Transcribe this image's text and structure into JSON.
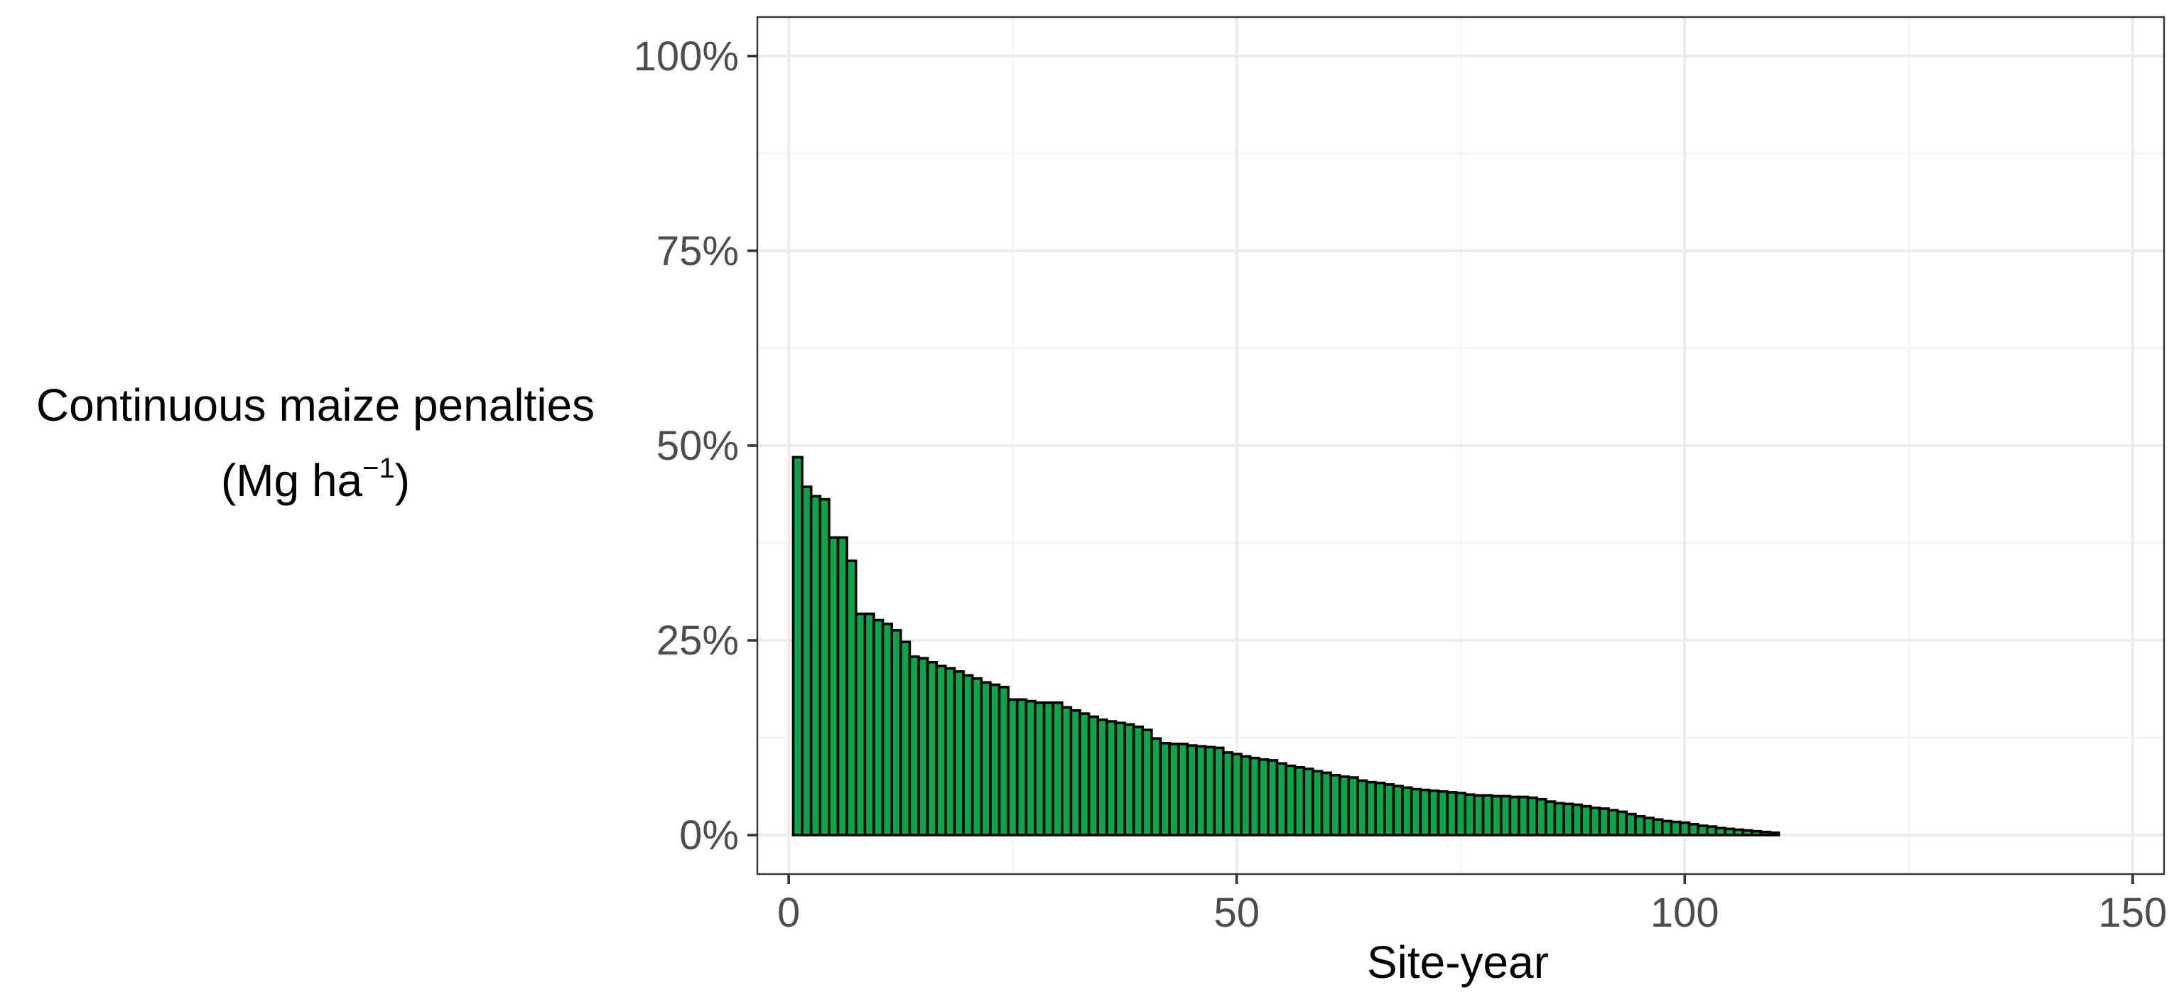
{
  "chart_data": {
    "type": "bar",
    "xlabel": "Site-year",
    "ylabel_line1": "Continuous maize penalties",
    "ylabel_line2_prefix": "(Mg  ha",
    "ylabel_line2_sup": "−1",
    "ylabel_line2_suffix": ")",
    "xlim": [
      -3.5,
      153.5
    ],
    "ylim": [
      -0.05,
      1.05
    ],
    "x_ticks": [
      0,
      50,
      100,
      150
    ],
    "x_tick_labels": [
      "0",
      "50",
      "100",
      "150"
    ],
    "y_ticks": [
      0,
      0.25,
      0.5,
      0.75,
      1.0
    ],
    "y_tick_labels": [
      "0%",
      "25%",
      "50%",
      "75%",
      "100%"
    ],
    "grid": true,
    "bar_color": "#0aa64a",
    "bar_outline": "#000000",
    "x": [
      1,
      2,
      3,
      4,
      5,
      6,
      7,
      8,
      9,
      10,
      11,
      12,
      13,
      14,
      15,
      16,
      17,
      18,
      19,
      20,
      21,
      22,
      23,
      24,
      25,
      26,
      27,
      28,
      29,
      30,
      31,
      32,
      33,
      34,
      35,
      36,
      37,
      38,
      39,
      40,
      41,
      42,
      43,
      44,
      45,
      46,
      47,
      48,
      49,
      50,
      51,
      52,
      53,
      54,
      55,
      56,
      57,
      58,
      59,
      60,
      61,
      62,
      63,
      64,
      65,
      66,
      67,
      68,
      69,
      70,
      71,
      72,
      73,
      74,
      75,
      76,
      77,
      78,
      79,
      80,
      81,
      82,
      83,
      84,
      85,
      86,
      87,
      88,
      89,
      90,
      91,
      92,
      93,
      94,
      95,
      96,
      97,
      98,
      99,
      100,
      101,
      102,
      103,
      104,
      105,
      106,
      107,
      108,
      109,
      110,
      111,
      112,
      113,
      114,
      115,
      116,
      117,
      118,
      119,
      120,
      121,
      122,
      123,
      124,
      125,
      126,
      127,
      128,
      129,
      130,
      131,
      132,
      133,
      134,
      135,
      136,
      137,
      138,
      139,
      140,
      141,
      142,
      143,
      144,
      145,
      146,
      147,
      148,
      149
    ],
    "values": [
      0.485,
      0.447,
      0.435,
      0.431,
      0.382,
      0.382,
      0.352,
      0.284,
      0.284,
      0.276,
      0.271,
      0.263,
      0.248,
      0.229,
      0.227,
      0.222,
      0.217,
      0.214,
      0.21,
      0.205,
      0.201,
      0.196,
      0.193,
      0.19,
      0.174,
      0.174,
      0.172,
      0.17,
      0.17,
      0.17,
      0.164,
      0.16,
      0.156,
      0.152,
      0.148,
      0.146,
      0.144,
      0.142,
      0.139,
      0.135,
      0.124,
      0.118,
      0.117,
      0.117,
      0.115,
      0.114,
      0.113,
      0.112,
      0.106,
      0.104,
      0.101,
      0.099,
      0.097,
      0.096,
      0.092,
      0.089,
      0.087,
      0.085,
      0.082,
      0.08,
      0.077,
      0.075,
      0.074,
      0.07,
      0.068,
      0.067,
      0.065,
      0.063,
      0.061,
      0.059,
      0.058,
      0.057,
      0.056,
      0.055,
      0.054,
      0.052,
      0.051,
      0.051,
      0.05,
      0.05,
      0.049,
      0.049,
      0.048,
      0.046,
      0.043,
      0.041,
      0.04,
      0.039,
      0.037,
      0.035,
      0.034,
      0.032,
      0.03,
      0.027,
      0.024,
      0.022,
      0.02,
      0.018,
      0.017,
      0.016,
      0.014,
      0.012,
      0.011,
      0.009,
      0.008,
      0.007,
      0.006,
      0.005,
      0.004,
      0.003,
      0,
      0,
      0,
      0,
      0,
      0,
      0,
      0,
      0,
      0,
      0,
      0,
      0,
      0,
      0,
      0,
      0,
      0,
      0,
      0,
      0,
      0,
      0,
      0,
      0,
      0,
      0,
      0,
      0,
      0,
      0,
      0,
      0,
      0,
      0,
      0,
      0,
      0,
      0
    ]
  }
}
